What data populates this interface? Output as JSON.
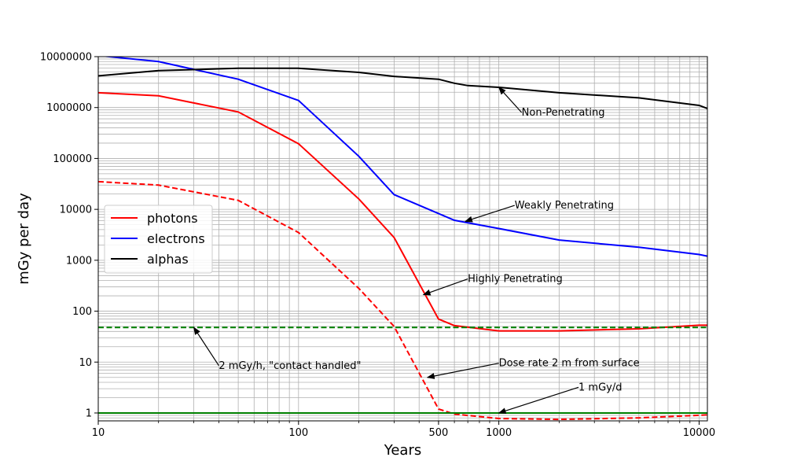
{
  "chart_data": {
    "type": "line",
    "title": "",
    "xlabel": "Years",
    "ylabel": "mGy per day",
    "xscale": "log",
    "yscale": "log",
    "xlim": [
      10,
      11000
    ],
    "ylim": [
      0.7,
      10000000
    ],
    "grid": "major and minor on both axes",
    "legend_position": "center-left",
    "x_ticks": [
      {
        "value": 10,
        "label": "10"
      },
      {
        "value": 100,
        "label": "100"
      },
      {
        "value": 500,
        "label": "500"
      },
      {
        "value": 1000,
        "label": "1000"
      },
      {
        "value": 10000,
        "label": "10000"
      }
    ],
    "y_ticks": [
      {
        "value": 1,
        "label": "1"
      },
      {
        "value": 10,
        "label": "10"
      },
      {
        "value": 100,
        "label": "100"
      },
      {
        "value": 1000,
        "label": "1000"
      },
      {
        "value": 10000,
        "label": "10000"
      },
      {
        "value": 100000,
        "label": "100000"
      },
      {
        "value": 1000000,
        "label": "1000000"
      },
      {
        "value": 10000000,
        "label": "10000000"
      }
    ],
    "series": [
      {
        "name": "photons",
        "color": "#ff0000",
        "dash": "solid",
        "in_legend": true,
        "points": [
          [
            10,
            1950000
          ],
          [
            20,
            1700000
          ],
          [
            50,
            820000
          ],
          [
            100,
            195000
          ],
          [
            200,
            16000
          ],
          [
            300,
            2800
          ],
          [
            500,
            70
          ],
          [
            600,
            52
          ],
          [
            1000,
            41
          ],
          [
            2000,
            41
          ],
          [
            5000,
            45
          ],
          [
            10000,
            53
          ],
          [
            11000,
            53
          ]
        ]
      },
      {
        "name": "electrons",
        "color": "#0000ff",
        "dash": "solid",
        "in_legend": true,
        "points": [
          [
            10,
            10500000
          ],
          [
            20,
            8000000
          ],
          [
            50,
            3600000
          ],
          [
            100,
            1380000
          ],
          [
            200,
            110000
          ],
          [
            300,
            19500
          ],
          [
            600,
            6100
          ],
          [
            1000,
            4200
          ],
          [
            2000,
            2500
          ],
          [
            5000,
            1800
          ],
          [
            10000,
            1300
          ],
          [
            11000,
            1200
          ]
        ]
      },
      {
        "name": "alphas",
        "color": "#000000",
        "dash": "solid",
        "in_legend": true,
        "points": [
          [
            10,
            4200000
          ],
          [
            20,
            5300000
          ],
          [
            50,
            5900000
          ],
          [
            100,
            5900000
          ],
          [
            200,
            4900000
          ],
          [
            300,
            4100000
          ],
          [
            500,
            3600000
          ],
          [
            600,
            3000000
          ],
          [
            700,
            2700000
          ],
          [
            1000,
            2500000
          ],
          [
            2000,
            1950000
          ],
          [
            5000,
            1550000
          ],
          [
            10000,
            1100000
          ],
          [
            11000,
            960000
          ]
        ]
      },
      {
        "name": "",
        "color": "#ff0000",
        "dash": "dashed",
        "in_legend": false,
        "points": [
          [
            10,
            35000
          ],
          [
            20,
            30000
          ],
          [
            50,
            15000
          ],
          [
            100,
            3500
          ],
          [
            200,
            280
          ],
          [
            300,
            50
          ],
          [
            500,
            1.2
          ],
          [
            600,
            0.95
          ],
          [
            1000,
            0.78
          ],
          [
            2000,
            0.75
          ],
          [
            5000,
            0.8
          ],
          [
            10000,
            0.9
          ],
          [
            11000,
            0.92
          ]
        ]
      },
      {
        "name": "",
        "color": "#008000",
        "dash": "dashed",
        "in_legend": false,
        "points": [
          [
            10,
            48
          ],
          [
            11000,
            48
          ]
        ]
      },
      {
        "name": "",
        "color": "#008000",
        "dash": "solid",
        "in_legend": false,
        "points": [
          [
            10,
            1
          ],
          [
            11000,
            1
          ]
        ]
      }
    ],
    "annotations": [
      {
        "text": "Non-Penetrating",
        "arrow_to": [
          1000,
          2500000
        ],
        "text_at": [
          1300,
          800000
        ],
        "text_value": [
          1300,
          800000
        ]
      },
      {
        "text": "Weakly Penetrating",
        "arrow_to": [
          680,
          5800
        ],
        "text_at": [
          1200,
          12000
        ]
      },
      {
        "text": "Highly Penetrating",
        "arrow_to": [
          420,
          210
        ],
        "text_at": [
          700,
          430
        ]
      },
      {
        "text": "2 mGy/h, \"contact handled\"",
        "arrow_to": [
          30,
          48
        ],
        "text_at": [
          40,
          8.5
        ]
      },
      {
        "text": "Dose rate 2 m from surface",
        "arrow_to": [
          440,
          5
        ],
        "text_at": [
          1000,
          9.5
        ]
      },
      {
        "text": "1 mGy/d",
        "arrow_to": [
          1000,
          1
        ],
        "text_at": [
          2500,
          3.2
        ]
      }
    ]
  }
}
